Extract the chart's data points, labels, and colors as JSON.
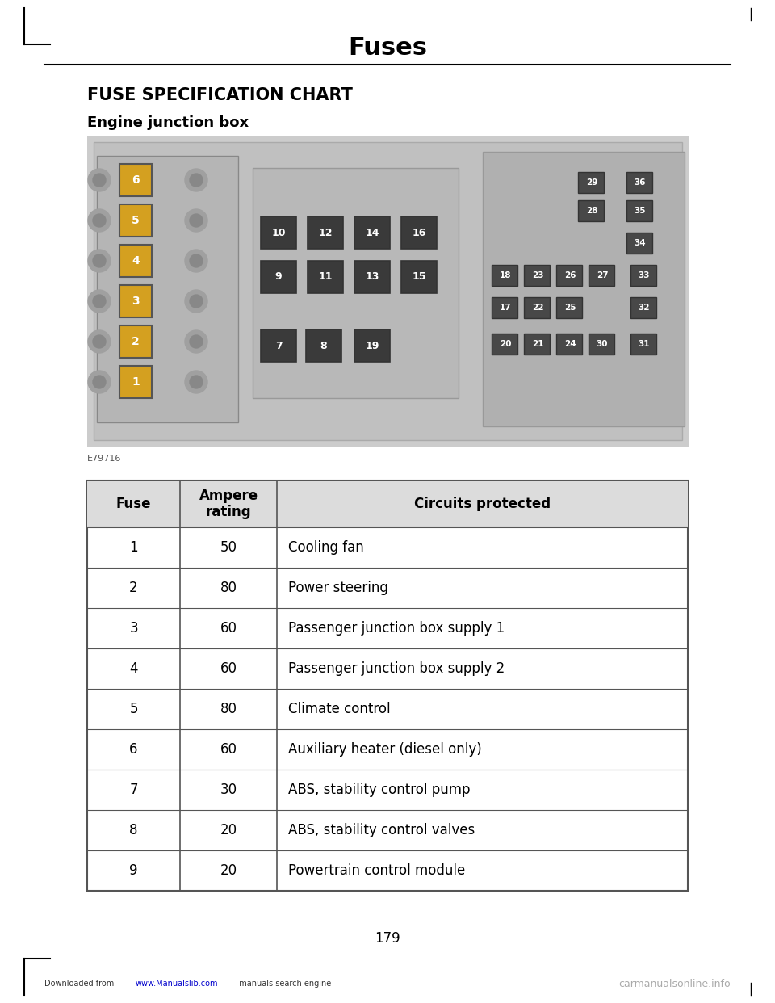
{
  "page_title": "Fuses",
  "section_title": "FUSE SPECIFICATION CHART",
  "subsection_title": "Engine junction box",
  "image_label": "E79716",
  "page_number": "179",
  "footer_right": "carmanualsonline.info",
  "table_headers": [
    "Fuse",
    "Ampere\nrating",
    "Circuits protected"
  ],
  "table_rows": [
    [
      "1",
      "50",
      "Cooling fan"
    ],
    [
      "2",
      "80",
      "Power steering"
    ],
    [
      "3",
      "60",
      "Passenger junction box supply 1"
    ],
    [
      "4",
      "60",
      "Passenger junction box supply 2"
    ],
    [
      "5",
      "80",
      "Climate control"
    ],
    [
      "6",
      "60",
      "Auxiliary heater (diesel only)"
    ],
    [
      "7",
      "30",
      "ABS, stability control pump"
    ],
    [
      "8",
      "20",
      "ABS, stability control valves"
    ],
    [
      "9",
      "20",
      "Powertrain control module"
    ]
  ],
  "bg_color": "#ffffff",
  "text_color": "#000000",
  "table_line_color": "#555555",
  "corner_mark_color": "#000000",
  "footer_url_color": "#0000cc",
  "footer_right_color": "#aaaaaa"
}
